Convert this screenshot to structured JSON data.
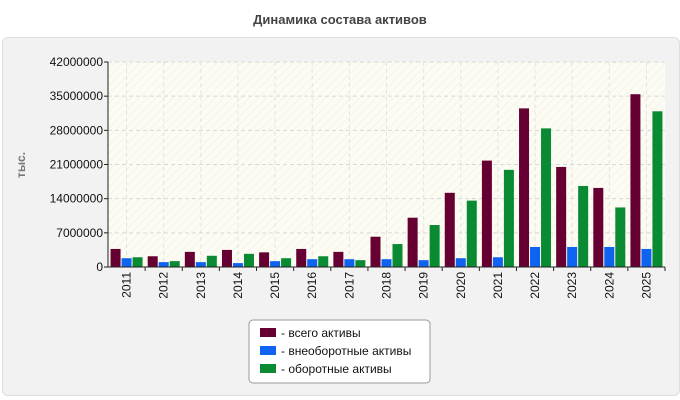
{
  "chart_data": {
    "type": "bar",
    "title": "Динамика состава активов",
    "ylabel": "тыс.",
    "xlabel": "",
    "ylim": [
      0,
      42000000
    ],
    "yticks": [
      0,
      7000000,
      14000000,
      21000000,
      28000000,
      35000000,
      42000000
    ],
    "grid": true,
    "legend_position": "bottom-center",
    "categories": [
      "2011",
      "2012",
      "2013",
      "2014",
      "2015",
      "2016",
      "2017",
      "2018",
      "2019",
      "2020",
      "2021",
      "2022",
      "2023",
      "2024",
      "2025"
    ],
    "series": [
      {
        "name": "- всего активы",
        "color": "#660033",
        "values": [
          3700000,
          2200000,
          3100000,
          3500000,
          3000000,
          3700000,
          3100000,
          6200000,
          10100000,
          15200000,
          21800000,
          32500000,
          20500000,
          16200000,
          35400000
        ]
      },
      {
        "name": "- внеоборотные активы",
        "color": "#0e63f0",
        "values": [
          1800000,
          1000000,
          1000000,
          800000,
          1200000,
          1600000,
          1600000,
          1600000,
          1400000,
          1800000,
          2000000,
          4100000,
          4100000,
          4100000,
          3700000
        ]
      },
      {
        "name": "- оборотные активы",
        "color": "#0a8a32",
        "values": [
          2000000,
          1200000,
          2300000,
          2700000,
          1800000,
          2200000,
          1400000,
          4700000,
          8600000,
          13600000,
          19900000,
          28400000,
          16600000,
          12200000,
          31900000
        ]
      }
    ]
  }
}
